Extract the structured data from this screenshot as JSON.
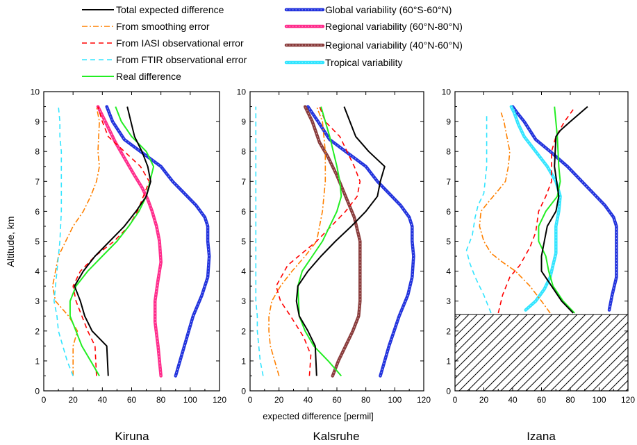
{
  "chart_data": {
    "type": "line",
    "legend": {
      "placement": "top",
      "entries": [
        {
          "label": "Total expected difference",
          "color": "#000000",
          "style": "solid"
        },
        {
          "label": "From smoothing error",
          "color": "#ff8000",
          "style": "dashdot"
        },
        {
          "label": "From IASI observational error",
          "color": "#ff0000",
          "style": "dashed"
        },
        {
          "label": "From FTIR observational error",
          "color": "#33e5ff",
          "style": "dashed"
        },
        {
          "label": "Real difference",
          "color": "#22ee22",
          "style": "solid"
        },
        {
          "label": "Global variability (60°S-60°N)",
          "color": "#2233dd",
          "style": "thick"
        },
        {
          "label": "Regional variability (60°N-80°N)",
          "color": "#ff2d8c",
          "style": "thick"
        },
        {
          "label": "Regional variability (40°N-60°N)",
          "color": "#8a3c3c",
          "style": "thick"
        },
        {
          "label": "Tropical variability",
          "color": "#33e5ff",
          "style": "thick"
        }
      ]
    },
    "xlabel": "expected difference [permil]",
    "ylabel": "Altitude, km",
    "xlim": [
      0,
      120
    ],
    "ylim": [
      0,
      10
    ],
    "xticks": [
      "0",
      "20",
      "40",
      "60",
      "80",
      "100",
      "120"
    ],
    "yticks": [
      "0",
      "1",
      "2",
      "3",
      "4",
      "5",
      "6",
      "7",
      "8",
      "9",
      "10"
    ],
    "grid": false,
    "panels": [
      {
        "title": "Kiruna",
        "shade_below": null,
        "series": [
          {
            "key": "global",
            "x": [
              90,
              96,
              102,
              108,
              112,
              113,
              112,
              112,
              110,
              104,
              96,
              88,
              80,
              66,
              55,
              47,
              43
            ],
            "y": [
              0.5,
              1.5,
              2.5,
              3.2,
              3.8,
              4.5,
              5.0,
              5.5,
              5.8,
              6.2,
              6.6,
              7.0,
              7.5,
              8.0,
              8.4,
              9.0,
              9.5
            ]
          },
          {
            "key": "regional_north",
            "x": [
              80,
              78,
              76,
              76,
              78,
              80,
              79,
              77,
              74,
              71,
              67,
              62,
              56,
              49,
              42,
              37
            ],
            "y": [
              0.5,
              1.5,
              2.3,
              3.0,
              3.7,
              4.3,
              5.0,
              5.5,
              6.0,
              6.4,
              6.8,
              7.2,
              7.7,
              8.3,
              9.0,
              9.5
            ]
          },
          {
            "key": "smoothing",
            "x": [
              20,
              20,
              23,
              17,
              8,
              6,
              10,
              15,
              20,
              27,
              32,
              36,
              38,
              37,
              38,
              36
            ],
            "y": [
              0.5,
              1.5,
              2.0,
              2.5,
              3.0,
              3.5,
              4.5,
              5.0,
              5.5,
              6.0,
              6.5,
              7.0,
              7.5,
              8.0,
              9.0,
              9.5
            ]
          },
          {
            "key": "iasi",
            "x": [
              36,
              35,
              30,
              22,
              20,
              25,
              35,
              48,
              58,
              64,
              68,
              72,
              66,
              55,
              44,
              40,
              37
            ],
            "y": [
              0.5,
              1.5,
              2.0,
              3.0,
              3.5,
              4.0,
              4.5,
              5.0,
              5.5,
              6.0,
              6.5,
              7.0,
              7.5,
              8.0,
              8.5,
              9.0,
              9.5
            ]
          },
          {
            "key": "ftir",
            "x": [
              20,
              16,
              13,
              10,
              9,
              7,
              9,
              11,
              12,
              12,
              12,
              11,
              11,
              10
            ],
            "y": [
              0.5,
              1.0,
              1.5,
              2.0,
              2.5,
              3.0,
              4.0,
              5.0,
              6.0,
              7.0,
              8.0,
              8.5,
              9.0,
              9.5
            ]
          },
          {
            "key": "real",
            "x": [
              38,
              32,
              26,
              22,
              18,
              18,
              22,
              30,
              40,
              50,
              58,
              65,
              70,
              75,
              70,
              60,
              53,
              49
            ],
            "y": [
              0.5,
              1.0,
              1.5,
              2.0,
              2.5,
              3.0,
              3.5,
              4.0,
              4.5,
              5.0,
              5.5,
              6.0,
              6.5,
              7.5,
              8.0,
              8.5,
              9.0,
              9.5
            ]
          },
          {
            "key": "total",
            "x": [
              44,
              43,
              33,
              28,
              25,
              21,
              27,
              35,
              45,
              55,
              63,
              70,
              73,
              71,
              67,
              62,
              57
            ],
            "y": [
              0.5,
              1.5,
              2.0,
              2.5,
              3.0,
              3.5,
              4.0,
              4.5,
              5.0,
              5.5,
              6.0,
              6.5,
              7.0,
              7.5,
              8.0,
              8.5,
              9.5
            ]
          }
        ]
      },
      {
        "title": "Kalsruhe",
        "shade_below": null,
        "series": [
          {
            "key": "global",
            "x": [
              90,
              96,
              103,
              109,
              112,
              113,
              112,
              112,
              110,
              104,
              96,
              88,
              80,
              66,
              55,
              47,
              40
            ],
            "y": [
              0.5,
              1.5,
              2.5,
              3.2,
              3.8,
              4.5,
              5.0,
              5.5,
              5.8,
              6.2,
              6.6,
              7.0,
              7.5,
              8.0,
              8.4,
              9.0,
              9.5
            ]
          },
          {
            "key": "regional_mid",
            "x": [
              57,
              61,
              66,
              71,
              75,
              76,
              76,
              76,
              76,
              72,
              66,
              60,
              54,
              48,
              43,
              38
            ],
            "y": [
              0.5,
              1.0,
              1.5,
              2.0,
              2.5,
              3.0,
              3.5,
              4.0,
              5.0,
              5.8,
              6.5,
              7.2,
              7.8,
              8.3,
              9.0,
              9.5
            ]
          },
          {
            "key": "smoothing",
            "x": [
              20,
              14,
              13,
              13,
              15,
              21,
              29,
              38,
              46,
              50,
              52,
              52,
              50,
              46
            ],
            "y": [
              0.5,
              1.5,
              2.0,
              2.5,
              3.0,
              3.5,
              4.0,
              4.5,
              5.0,
              6.0,
              7.0,
              8.0,
              9.0,
              9.5
            ]
          },
          {
            "key": "iasi",
            "x": [
              41,
              42,
              37,
              28,
              21,
              18,
              26,
              36,
              46,
              56,
              66,
              74,
              76,
              72,
              62,
              52,
              48
            ],
            "y": [
              0.5,
              1.2,
              1.8,
              2.5,
              3.0,
              3.5,
              4.2,
              4.6,
              5.0,
              5.5,
              6.0,
              6.5,
              7.0,
              7.5,
              8.5,
              9.0,
              9.5
            ]
          },
          {
            "key": "ftir",
            "x": [
              9,
              7,
              6,
              5,
              5,
              4,
              4,
              4,
              4,
              4,
              4,
              4,
              4,
              4,
              4
            ],
            "y": [
              0.5,
              1.0,
              1.5,
              2.0,
              2.5,
              3.0,
              4.0,
              5.0,
              6.0,
              7.0,
              7.5,
              8.0,
              8.5,
              9.0,
              9.5
            ]
          },
          {
            "key": "real",
            "x": [
              63,
              54,
              44,
              38,
              34,
              33,
              36,
              43,
              50,
              55,
              60,
              63,
              62,
              60,
              55,
              49
            ],
            "y": [
              0.5,
              1.0,
              1.5,
              2.0,
              2.5,
              3.5,
              4.0,
              4.5,
              5.0,
              5.5,
              6.0,
              6.5,
              7.0,
              7.5,
              8.5,
              9.5
            ]
          },
          {
            "key": "total",
            "x": [
              46,
              45,
              40,
              34,
              32,
              33,
              40,
              49,
              59,
              70,
              80,
              88,
              90,
              93,
              82,
              73,
              65
            ],
            "y": [
              0.5,
              1.5,
              2.0,
              2.5,
              3.0,
              3.5,
              4.0,
              4.5,
              5.0,
              5.5,
              6.0,
              6.5,
              7.0,
              7.5,
              8.0,
              8.5,
              9.5
            ]
          }
        ]
      },
      {
        "title": "Izana",
        "shade_below": 2.55,
        "series": [
          {
            "key": "global",
            "x": [
              107,
              109,
              112,
              112,
              112,
              112,
              110,
              104,
              96,
              88,
              78,
              66,
              56,
              48,
              43,
              40
            ],
            "y": [
              2.7,
              3.2,
              3.8,
              4.5,
              5.0,
              5.5,
              5.8,
              6.2,
              6.6,
              7.0,
              7.5,
              8.0,
              8.4,
              9.0,
              9.3,
              9.5
            ]
          },
          {
            "key": "tropical",
            "x": [
              49,
              56,
              62,
              66,
              68,
              70,
              70,
              70,
              72,
              73,
              70,
              64,
              56,
              48,
              44,
              41,
              39
            ],
            "y": [
              2.7,
              3.0,
              3.4,
              3.8,
              4.2,
              4.6,
              5.0,
              5.5,
              6.0,
              6.5,
              7.0,
              7.5,
              8.0,
              8.5,
              8.9,
              9.3,
              9.5
            ]
          },
          {
            "key": "smoothing",
            "x": [
              66,
              60,
              52,
              42,
              33,
              25,
              20,
              17,
              18,
              23,
              30,
              35,
              37,
              38,
              36,
              34,
              32
            ],
            "y": [
              2.6,
              3.0,
              3.5,
              4.0,
              4.3,
              4.6,
              5.0,
              5.5,
              6.0,
              6.3,
              6.7,
              7.0,
              7.5,
              8.0,
              8.5,
              9.0,
              9.3
            ]
          },
          {
            "key": "iasi",
            "x": [
              30,
              33,
              38,
              45,
              52,
              56,
              58,
              63,
              67,
              67,
              67,
              70,
              76,
              82
            ],
            "y": [
              2.6,
              3.2,
              3.8,
              4.2,
              4.8,
              5.3,
              6.0,
              6.5,
              7.0,
              7.5,
              8.0,
              8.5,
              9.0,
              9.4
            ]
          },
          {
            "key": "ftir",
            "x": [
              25,
              20,
              14,
              10,
              8,
              12,
              14,
              16,
              20,
              22,
              22,
              22
            ],
            "y": [
              2.6,
              3.2,
              3.8,
              4.3,
              4.7,
              5.2,
              5.8,
              6.2,
              6.6,
              7.5,
              8.5,
              9.2
            ]
          },
          {
            "key": "real",
            "x": [
              83,
              75,
              68,
              65,
              63,
              58,
              58,
              63,
              71,
              73,
              72,
              71,
              69
            ],
            "y": [
              2.6,
              3.0,
              3.5,
              4.0,
              4.5,
              5.0,
              5.5,
              6.0,
              6.5,
              7.0,
              7.5,
              8.5,
              9.5
            ]
          },
          {
            "key": "total",
            "x": [
              82,
              74,
              67,
              60,
              60,
              62,
              64,
              70,
              72,
              69,
              70,
              73,
              80,
              92
            ],
            "y": [
              2.6,
              3.0,
              3.5,
              4.0,
              4.5,
              5.0,
              5.5,
              6.0,
              6.5,
              7.5,
              8.5,
              8.7,
              9.0,
              9.5
            ]
          }
        ]
      }
    ]
  }
}
